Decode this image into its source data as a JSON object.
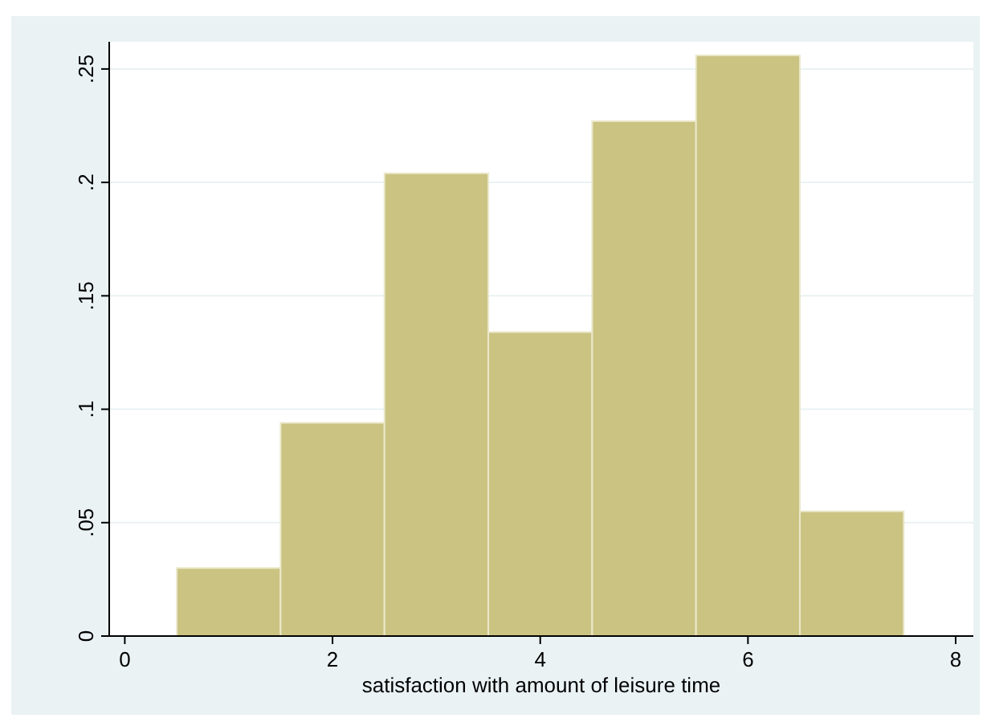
{
  "chart_data": {
    "type": "histogram",
    "xlabel": "satisfaction with amount of leisure time",
    "bins": [
      0.5,
      1.5,
      2.5,
      3.5,
      4.5,
      5.5,
      6.5,
      7.5
    ],
    "values": [
      0.03,
      0.094,
      0.204,
      0.134,
      0.227,
      0.256,
      0.055
    ],
    "color": "#cbc382",
    "xlim": [
      -0.15,
      8.17
    ],
    "ylim": [
      0,
      0.262
    ],
    "xticks": [
      0,
      2,
      4,
      6,
      8
    ],
    "yticks": [
      {
        "value": 0,
        "label": "0"
      },
      {
        "value": 0.05,
        "label": ".05"
      },
      {
        "value": 0.1,
        "label": ".1"
      },
      {
        "value": 0.15,
        "label": ".15"
      },
      {
        "value": 0.2,
        "label": ".2"
      },
      {
        "value": 0.25,
        "label": ".25"
      }
    ],
    "grid": "y"
  }
}
